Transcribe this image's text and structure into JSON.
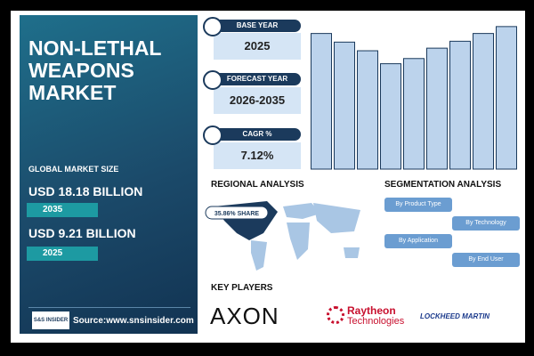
{
  "header": {
    "title": "NON-LETHAL WEAPONS MARKET"
  },
  "market_size": {
    "label": "GLOBAL MARKET SIZE",
    "value_2035": "USD 18.18 BILLION",
    "year_2035": "2035",
    "value_2025": "USD 9.21 BILLION",
    "year_2025": "2025"
  },
  "source": {
    "logo": "S&S INSIDER",
    "text": "Source:www.snsinsider.com"
  },
  "cards": [
    {
      "label": "BASE YEAR",
      "value": "2025"
    },
    {
      "label": "FORECAST YEAR",
      "value": "2026-2035"
    },
    {
      "label": "CAGR %",
      "value": "7.12%"
    }
  ],
  "chart_data": {
    "type": "bar",
    "values": [
      157,
      147,
      137,
      122,
      128,
      140,
      148,
      157,
      165
    ],
    "ylim": [
      0,
      170
    ],
    "color": "#bcd3ec"
  },
  "regional": {
    "title": "REGIONAL ANALYSIS",
    "share": "35.86% SHARE"
  },
  "segmentation": {
    "title": "SEGMENTATION ANALYSIS",
    "items": [
      "By Product Type",
      "By Technology",
      "By Application",
      "By End User"
    ]
  },
  "key_players": {
    "title": "KEY PLAYERS",
    "logos": [
      "AXON",
      "Raytheon",
      "Technologies",
      "LOCKHEED MARTIN"
    ]
  }
}
